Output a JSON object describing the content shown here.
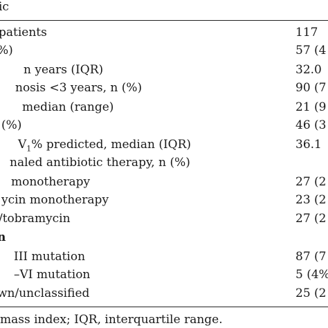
{
  "table": {
    "header_label": "ic",
    "rows": [
      {
        "label": "patients",
        "value": "117"
      },
      {
        "label": "%)",
        "value": "57 (4"
      },
      {
        "label": "n years (IQR)",
        "value": "32.0"
      },
      {
        "label": "nosis <3 years, n (%)",
        "value": "90 (7"
      },
      {
        "label": "median (range)",
        "value": "21 (9"
      },
      {
        "label": "(%)",
        "value": "46 (3"
      },
      {
        "label_prefix": "V",
        "label_sub": "1",
        "label_suffix": "% predicted, median (IQR)",
        "value": "36.1"
      },
      {
        "label": "naled antibiotic therapy, n (%)",
        "value": ""
      },
      {
        "label": "monotherapy",
        "value": "27 (2"
      },
      {
        "label": "ycin monotherapy",
        "value": "23 (2"
      },
      {
        "label": "/tobramycin",
        "value": "27 (2"
      },
      {
        "label": "n",
        "value": ""
      },
      {
        "label": "III mutation",
        "value": "87 (7"
      },
      {
        "label": "–VI mutation",
        "value": "5 (4%"
      },
      {
        "label": "wn/unclassified",
        "value": "25 (2"
      }
    ],
    "footnote": "mass index; IQR, interquartile range."
  }
}
